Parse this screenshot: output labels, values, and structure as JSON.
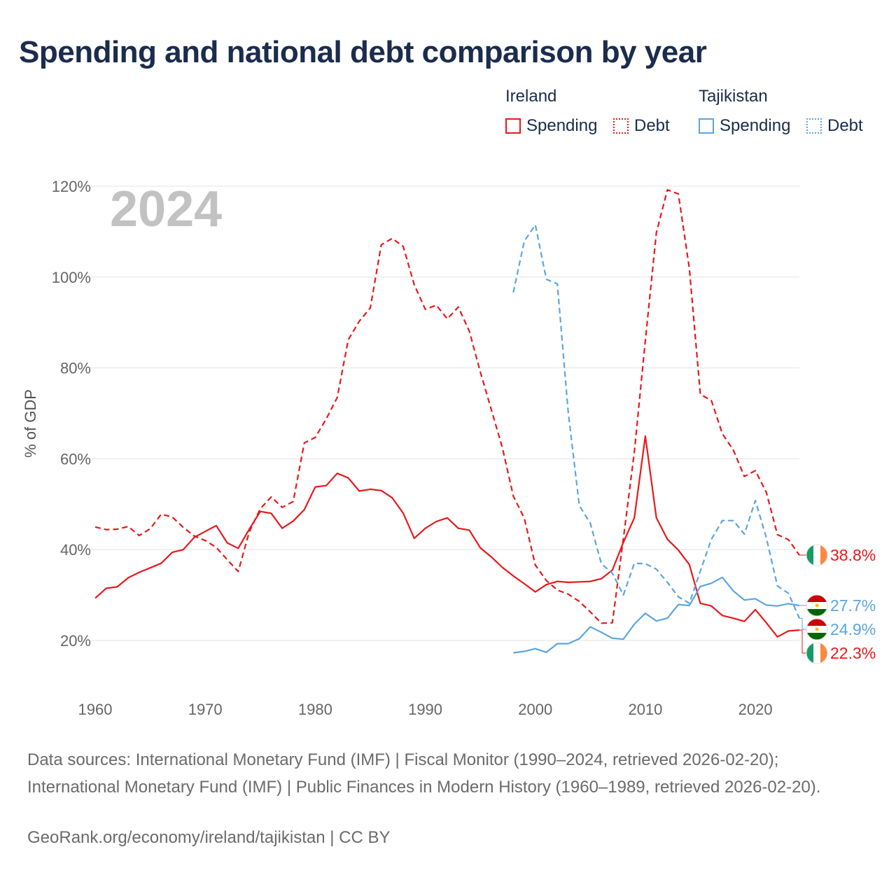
{
  "title": "Spending and national debt comparison by year",
  "legend": {
    "groups": [
      {
        "name": "Ireland",
        "color": "#e8191b",
        "items": [
          {
            "label": "Spending",
            "style": "solid"
          },
          {
            "label": "Debt",
            "style": "dotted"
          }
        ]
      },
      {
        "name": "Tajikistan",
        "color": "#5aa6e0",
        "items": [
          {
            "label": "Spending",
            "style": "solid"
          },
          {
            "label": "Debt",
            "style": "dotted"
          }
        ]
      }
    ]
  },
  "chart_data": {
    "type": "line",
    "year_label": "2024",
    "ylabel": "% of GDP",
    "xlabel": "",
    "xlim": [
      1960,
      2024
    ],
    "ylim": [
      10,
      120
    ],
    "y_ticks": [
      20,
      40,
      60,
      80,
      100,
      120
    ],
    "y_tick_labels": [
      "20%",
      "40%",
      "60%",
      "80%",
      "100%",
      "120%"
    ],
    "x_ticks": [
      1960,
      1970,
      1980,
      1990,
      2000,
      2010,
      2020
    ],
    "x_tick_labels": [
      "1960",
      "1970",
      "1980",
      "1990",
      "2000",
      "2010",
      "2020"
    ],
    "grid": true,
    "series": [
      {
        "name": "Ireland Spending",
        "color": "#e8191b",
        "dash": "solid",
        "start_year": 1960,
        "values": [
          29.3,
          31.5,
          31.8,
          33.8,
          35.0,
          36.0,
          37.0,
          39.4,
          40.0,
          42.7,
          44.0,
          45.3,
          41.5,
          40.3,
          44.5,
          48.4,
          48.0,
          44.7,
          46.3,
          48.8,
          53.8,
          54.1,
          56.8,
          55.8,
          52.9,
          53.3,
          53.0,
          51.4,
          48.0,
          42.5,
          44.7,
          46.2,
          47.0,
          44.7,
          44.3,
          40.4,
          38.4,
          36.1,
          34.2,
          32.5,
          30.7,
          32.3,
          33.0,
          32.8,
          32.9,
          33.0,
          33.6,
          35.5,
          41.6,
          47.0,
          65.0,
          47.0,
          42.3,
          39.9,
          36.7,
          28.2,
          27.6,
          25.5,
          24.9,
          24.2,
          26.8,
          23.9,
          20.8,
          22.1,
          22.3
        ]
      },
      {
        "name": "Ireland Debt",
        "color": "#e8191b",
        "dash": "dashed",
        "start_year": 1960,
        "values": [
          45.0,
          44.4,
          44.5,
          45.1,
          43.1,
          44.6,
          47.8,
          47.2,
          44.9,
          43.0,
          42.0,
          40.5,
          37.8,
          35.2,
          43.9,
          49.0,
          51.6,
          49.3,
          50.6,
          63.5,
          64.7,
          68.8,
          73.5,
          86.2,
          90.3,
          93.2,
          107.1,
          108.5,
          106.7,
          98.3,
          92.9,
          93.8,
          90.8,
          93.4,
          88.1,
          79.1,
          70.8,
          62.5,
          51.8,
          46.9,
          36.6,
          33.2,
          31.1,
          30.2,
          28.6,
          26.3,
          23.8,
          23.9,
          42.4,
          61.5,
          86.0,
          109.8,
          119.2,
          118.3,
          101.9,
          74.2,
          72.8,
          65.5,
          61.9,
          56.1,
          57.4,
          52.6,
          43.3,
          42.2,
          38.8
        ]
      },
      {
        "name": "Tajikistan Spending",
        "color": "#5aa6e0",
        "dash": "solid",
        "start_year": 1998,
        "values": [
          17.3,
          17.6,
          18.2,
          17.4,
          19.3,
          19.3,
          20.4,
          23.0,
          21.8,
          20.5,
          20.3,
          23.6,
          26.0,
          24.3,
          24.9,
          27.9,
          27.7,
          31.9,
          32.6,
          33.9,
          30.9,
          28.9,
          29.2,
          27.8,
          27.6,
          28.1,
          27.7
        ]
      },
      {
        "name": "Tajikistan Debt",
        "color": "#5aa6e0",
        "dash": "dashed",
        "start_year": 1998,
        "values": [
          96.6,
          107.9,
          111.5,
          99.5,
          98.5,
          70.0,
          49.7,
          45.8,
          36.9,
          34.8,
          30.0,
          37.0,
          36.9,
          35.7,
          32.8,
          29.6,
          28.2,
          35.3,
          42.3,
          46.4,
          46.4,
          43.4,
          50.8,
          42.6,
          32.0,
          30.4,
          24.9
        ]
      }
    ],
    "end_labels": [
      {
        "series": "Ireland Debt",
        "text": "38.8%",
        "value": 38.8,
        "color": "#e8191b",
        "flag": "ireland-flag-icon"
      },
      {
        "series": "Tajikistan Spending",
        "text": "27.7%",
        "value": 27.7,
        "color": "#5aa6e0",
        "flag": "tajikistan-flag-icon"
      },
      {
        "series": "Tajikistan Debt",
        "text": "24.9%",
        "value": 24.9,
        "color": "#5aa6e0",
        "flag": "tajikistan-flag-icon"
      },
      {
        "series": "Ireland Spending",
        "text": "22.3%",
        "value": 22.3,
        "color": "#e8191b",
        "flag": "ireland-flag-icon"
      }
    ]
  },
  "source": {
    "text": "Data sources: International Monetary Fund (IMF) | Fiscal Monitor (1990–2024, retrieved 2026-02-20); International Monetary Fund (IMF) | Public Finances in Modern History (1960–1989, retrieved 2026-02-20).",
    "footer": "GeoRank.org/economy/ireland/tajikistan | CC BY"
  }
}
